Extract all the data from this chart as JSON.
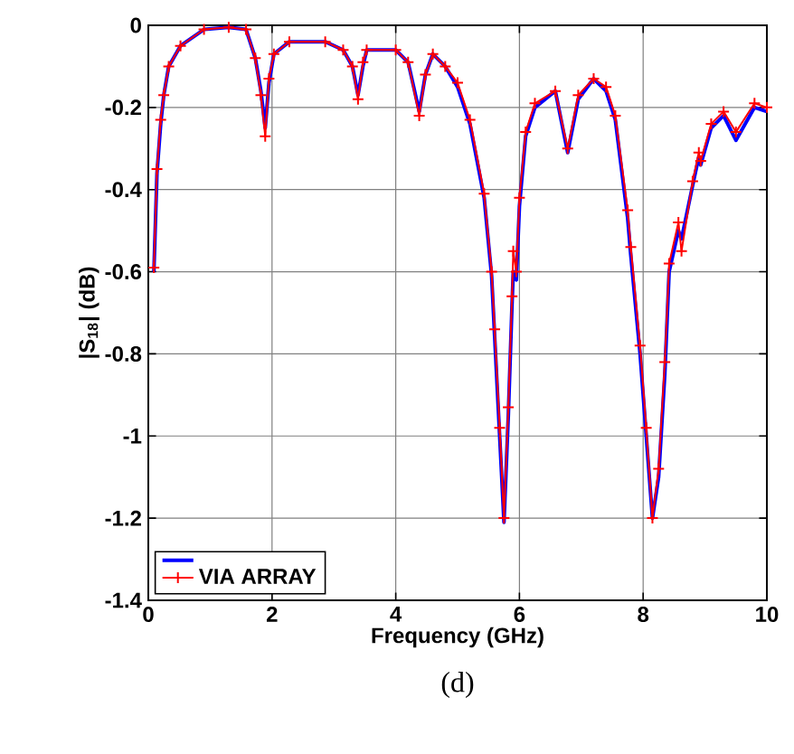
{
  "chart_data": {
    "type": "line",
    "xlabel": "Frequency (GHz)",
    "ylabel": "|S$_{18}$| (dB)",
    "xlim": [
      0,
      10
    ],
    "ylim": [
      -1.4,
      0
    ],
    "xticks": [
      0,
      2,
      4,
      6,
      8,
      10
    ],
    "yticks": [
      -1.4,
      -1.2,
      -1,
      -0.8,
      -0.6,
      -0.4,
      -0.2,
      0
    ],
    "grid": true,
    "legend": "bottom left",
    "annotations": [
      "(d)"
    ],
    "series": [
      {
        "color": "#0000ff",
        "marker": "none",
        "x": [
          0.09,
          0.14,
          0.2,
          0.25,
          0.33,
          0.52,
          0.9,
          1.3,
          1.58,
          1.73,
          1.82,
          1.89,
          1.95,
          2.03,
          2.28,
          2.86,
          3.15,
          3.3,
          3.39,
          3.47,
          3.53,
          4.0,
          4.2,
          4.38,
          4.48,
          4.6,
          4.8,
          5.0,
          5.2,
          5.43,
          5.55,
          5.6,
          5.68,
          5.75,
          5.82,
          5.88,
          5.9,
          5.95,
          6.0,
          6.1,
          6.25,
          6.58,
          6.78,
          6.95,
          7.2,
          7.4,
          7.55,
          7.75,
          7.8,
          7.95,
          8.05,
          8.15,
          8.25,
          8.35,
          8.42,
          8.57,
          8.62,
          8.8,
          8.9,
          8.93,
          9.1,
          9.3,
          9.5,
          9.8,
          10
        ],
        "values": [
          -0.6,
          -0.36,
          -0.24,
          -0.17,
          -0.1,
          -0.05,
          -0.01,
          -0.005,
          -0.01,
          -0.08,
          -0.16,
          -0.25,
          -0.14,
          -0.07,
          -0.04,
          -0.04,
          -0.06,
          -0.1,
          -0.17,
          -0.1,
          -0.06,
          -0.06,
          -0.09,
          -0.21,
          -0.12,
          -0.07,
          -0.1,
          -0.15,
          -0.24,
          -0.42,
          -0.61,
          -0.76,
          -1.0,
          -1.21,
          -0.95,
          -0.68,
          -0.6,
          -0.62,
          -0.44,
          -0.27,
          -0.2,
          -0.16,
          -0.31,
          -0.18,
          -0.13,
          -0.16,
          -0.23,
          -0.47,
          -0.56,
          -0.8,
          -1.0,
          -1.2,
          -1.1,
          -0.85,
          -0.6,
          -0.5,
          -0.52,
          -0.39,
          -0.32,
          -0.34,
          -0.25,
          -0.22,
          -0.28,
          -0.2,
          -0.21
        ]
      },
      {
        "name": "VIA ARRAY",
        "color": "#ff0000",
        "marker": "cross",
        "x": [
          0.09,
          0.14,
          0.2,
          0.25,
          0.33,
          0.52,
          0.9,
          1.3,
          1.58,
          1.73,
          1.82,
          1.89,
          1.95,
          2.03,
          2.28,
          2.86,
          3.15,
          3.3,
          3.39,
          3.47,
          3.53,
          4.0,
          4.2,
          4.38,
          4.48,
          4.6,
          4.8,
          5.0,
          5.2,
          5.43,
          5.55,
          5.6,
          5.68,
          5.75,
          5.82,
          5.88,
          5.9,
          5.95,
          6.0,
          6.1,
          6.25,
          6.58,
          6.78,
          6.95,
          7.2,
          7.4,
          7.55,
          7.75,
          7.8,
          7.95,
          8.05,
          8.15,
          8.25,
          8.35,
          8.42,
          8.57,
          8.62,
          8.8,
          8.9,
          8.93,
          9.1,
          9.3,
          9.5,
          9.8,
          10
        ],
        "values": [
          -0.59,
          -0.35,
          -0.23,
          -0.17,
          -0.1,
          -0.05,
          -0.01,
          -0.005,
          -0.01,
          -0.08,
          -0.17,
          -0.27,
          -0.13,
          -0.07,
          -0.04,
          -0.04,
          -0.06,
          -0.1,
          -0.18,
          -0.09,
          -0.06,
          -0.06,
          -0.09,
          -0.22,
          -0.12,
          -0.07,
          -0.1,
          -0.14,
          -0.23,
          -0.41,
          -0.6,
          -0.74,
          -0.98,
          -1.2,
          -0.93,
          -0.66,
          -0.55,
          -0.6,
          -0.42,
          -0.26,
          -0.19,
          -0.16,
          -0.3,
          -0.17,
          -0.13,
          -0.15,
          -0.22,
          -0.45,
          -0.54,
          -0.78,
          -0.98,
          -1.2,
          -1.08,
          -0.82,
          -0.58,
          -0.48,
          -0.55,
          -0.38,
          -0.31,
          -0.33,
          -0.24,
          -0.21,
          -0.26,
          -0.19,
          -0.2
        ]
      }
    ]
  }
}
